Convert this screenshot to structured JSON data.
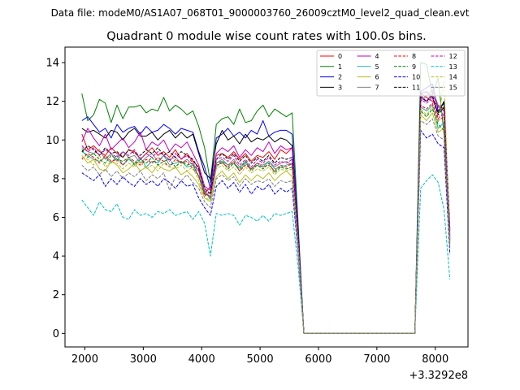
{
  "chart_data": {
    "type": "line",
    "suptitle": "Data file: modeM0/AS1A07_068T01_9000003760_26009cztM0_level2_quad_clean.evt",
    "title": "Quadrant 0 module wise count rates with 100.0s bins.",
    "xlabel": "",
    "ylabel": "",
    "x_offset_label": "+3.3292e8",
    "xlim": [
      1660,
      8560
    ],
    "ylim": [
      -0.7,
      14.8
    ],
    "x_ticks": [
      2000,
      3000,
      4000,
      5000,
      6000,
      7000,
      8000
    ],
    "y_ticks": [
      0,
      2,
      4,
      6,
      8,
      10,
      12,
      14
    ],
    "x": [
      1950,
      2050,
      2150,
      2250,
      2350,
      2450,
      2550,
      2650,
      2750,
      2850,
      2950,
      3050,
      3150,
      3250,
      3350,
      3450,
      3550,
      3650,
      3750,
      3850,
      3950,
      4050,
      4150,
      4250,
      4350,
      4450,
      4550,
      4650,
      4750,
      4850,
      4950,
      5050,
      5150,
      5250,
      5350,
      5450,
      5550,
      5650,
      5750,
      5850,
      5950,
      6050,
      6150,
      6250,
      6350,
      6450,
      6550,
      6650,
      6750,
      6850,
      6950,
      7050,
      7150,
      7250,
      7350,
      7450,
      7550,
      7650,
      7750,
      7850,
      7950,
      8050,
      8150,
      8250
    ],
    "legend_position": "top-right",
    "series": [
      {
        "name": "0",
        "color": "#ff0000",
        "dash": "solid",
        "values": [
          10.3,
          9.5,
          9.7,
          9.4,
          9.2,
          9.6,
          9.3,
          9.1,
          9.5,
          9.4,
          9.0,
          9.3,
          9.6,
          9.2,
          9.4,
          9.1,
          9.5,
          9.0,
          9.3,
          8.9,
          8.6,
          7.2,
          7.6,
          9.2,
          9.3,
          9.1,
          9.4,
          9.0,
          9.3,
          8.9,
          9.2,
          9.1,
          9.4,
          9.0,
          9.5,
          9.3,
          9.6,
          5.0,
          0.0,
          0.0,
          0.0,
          0.0,
          0.0,
          0.0,
          0.0,
          0.0,
          0.0,
          0.0,
          0.0,
          0.0,
          0.0,
          0.0,
          0.0,
          0.0,
          0.0,
          0.0,
          0.0,
          0.0,
          12.4,
          12.2,
          12.0,
          11.8,
          11.6,
          4.9
        ]
      },
      {
        "name": "1",
        "color": "#008000",
        "dash": "solid",
        "values": [
          12.4,
          11.0,
          11.3,
          12.1,
          11.9,
          10.9,
          11.8,
          11.1,
          11.7,
          11.7,
          11.8,
          11.4,
          11.6,
          11.5,
          12.2,
          11.5,
          11.8,
          11.6,
          11.3,
          11.5,
          10.7,
          9.6,
          7.8,
          10.8,
          11.1,
          11.2,
          10.8,
          11.6,
          10.9,
          11.0,
          11.5,
          11.8,
          11.2,
          11.6,
          11.4,
          11.2,
          11.4,
          5.8,
          0.0,
          0.0,
          0.0,
          0.0,
          0.0,
          0.0,
          0.0,
          0.0,
          0.0,
          0.0,
          0.0,
          0.0,
          0.0,
          0.0,
          0.0,
          0.0,
          0.0,
          0.0,
          0.0,
          0.0,
          14.0,
          13.9,
          12.4,
          13.2,
          10.3,
          5.2
        ]
      },
      {
        "name": "2",
        "color": "#0000ff",
        "dash": "solid",
        "values": [
          11.0,
          11.2,
          10.8,
          10.4,
          10.6,
          10.1,
          10.8,
          10.4,
          10.6,
          10.7,
          10.3,
          10.7,
          10.4,
          10.5,
          10.8,
          10.6,
          10.3,
          10.6,
          10.5,
          10.4,
          9.4,
          8.6,
          7.5,
          10.1,
          10.3,
          10.6,
          10.2,
          10.4,
          10.1,
          10.5,
          10.3,
          11.0,
          10.2,
          10.4,
          10.5,
          10.5,
          10.3,
          5.5,
          0.0,
          0.0,
          0.0,
          0.0,
          0.0,
          0.0,
          0.0,
          0.0,
          0.0,
          0.0,
          0.0,
          0.0,
          0.0,
          0.0,
          0.0,
          0.0,
          0.0,
          0.0,
          0.0,
          0.0,
          12.5,
          12.7,
          12.9,
          11.5,
          11.9,
          5.4
        ]
      },
      {
        "name": "3",
        "color": "#000000",
        "dash": "solid",
        "values": [
          10.6,
          10.4,
          10.5,
          10.3,
          10.1,
          10.5,
          10.4,
          10.0,
          10.4,
          10.6,
          10.2,
          10.2,
          10.4,
          10.0,
          10.3,
          10.5,
          10.1,
          10.4,
          10.1,
          10.3,
          9.3,
          8.3,
          8.0,
          9.8,
          10.5,
          10.0,
          10.2,
          9.8,
          10.3,
          9.9,
          10.1,
          10.0,
          10.2,
          9.9,
          10.1,
          10.0,
          9.7,
          5.2,
          0.0,
          0.0,
          0.0,
          0.0,
          0.0,
          0.0,
          0.0,
          0.0,
          0.0,
          0.0,
          0.0,
          0.0,
          0.0,
          0.0,
          0.0,
          0.0,
          0.0,
          0.0,
          0.0,
          0.0,
          12.4,
          12.5,
          12.2,
          11.4,
          12.0,
          5.3
        ]
      },
      {
        "name": "4",
        "color": "#bf00bf",
        "dash": "solid",
        "values": [
          9.9,
          10.6,
          10.1,
          9.7,
          10.3,
          9.5,
          9.8,
          10.1,
          9.6,
          9.9,
          10.4,
          9.5,
          9.9,
          9.7,
          10.0,
          9.4,
          9.8,
          9.6,
          9.9,
          9.3,
          8.7,
          7.6,
          7.4,
          9.3,
          9.6,
          9.4,
          9.7,
          9.1,
          9.5,
          9.2,
          9.6,
          9.4,
          9.9,
          9.3,
          9.7,
          9.5,
          9.6,
          5.1,
          0.0,
          0.0,
          0.0,
          0.0,
          0.0,
          0.0,
          0.0,
          0.0,
          0.0,
          0.0,
          0.0,
          0.0,
          0.0,
          0.0,
          0.0,
          0.0,
          0.0,
          0.0,
          0.0,
          0.0,
          12.3,
          12.0,
          12.4,
          11.7,
          11.5,
          5.1
        ]
      },
      {
        "name": "5",
        "color": "#20b2aa",
        "dash": "solid",
        "values": [
          9.4,
          9.2,
          9.0,
          8.9,
          9.1,
          8.8,
          9.2,
          8.7,
          9.0,
          8.8,
          9.1,
          8.6,
          8.9,
          8.8,
          9.2,
          8.7,
          8.8,
          8.9,
          8.6,
          8.7,
          8.1,
          7.4,
          6.9,
          8.6,
          8.9,
          8.7,
          8.8,
          8.4,
          8.8,
          8.5,
          8.7,
          8.6,
          8.9,
          8.5,
          8.6,
          8.7,
          8.8,
          4.8,
          0.0,
          0.0,
          0.0,
          0.0,
          0.0,
          0.0,
          0.0,
          0.0,
          0.0,
          0.0,
          0.0,
          0.0,
          0.0,
          0.0,
          0.0,
          0.0,
          0.0,
          0.0,
          0.0,
          0.0,
          11.7,
          11.5,
          11.8,
          10.6,
          10.9,
          4.6
        ]
      },
      {
        "name": "6",
        "color": "#bcbd22",
        "dash": "solid",
        "values": [
          9.2,
          8.8,
          9.0,
          8.5,
          8.4,
          8.9,
          8.7,
          8.3,
          8.5,
          8.8,
          8.4,
          8.6,
          8.3,
          8.7,
          8.5,
          8.4,
          8.6,
          8.2,
          8.4,
          8.1,
          7.7,
          7.0,
          6.8,
          8.1,
          8.4,
          8.0,
          8.3,
          7.8,
          8.2,
          7.9,
          8.2,
          8.0,
          8.3,
          7.9,
          8.2,
          8.4,
          8.1,
          4.5,
          0.0,
          0.0,
          0.0,
          0.0,
          0.0,
          0.0,
          0.0,
          0.0,
          0.0,
          0.0,
          0.0,
          0.0,
          0.0,
          0.0,
          0.0,
          0.0,
          0.0,
          0.0,
          0.0,
          0.0,
          11.3,
          11.0,
          11.4,
          10.4,
          10.6,
          4.5
        ]
      },
      {
        "name": "7",
        "color": "#808080",
        "dash": "solid",
        "values": [
          9.6,
          9.4,
          9.3,
          9.5,
          9.0,
          9.3,
          8.9,
          9.4,
          9.1,
          9.2,
          8.8,
          9.1,
          9.3,
          8.9,
          9.2,
          9.0,
          9.1,
          8.8,
          9.0,
          8.7,
          8.4,
          7.3,
          7.0,
          8.8,
          9.0,
          8.7,
          9.0,
          8.6,
          8.9,
          8.5,
          8.8,
          8.7,
          8.9,
          8.6,
          8.8,
          8.9,
          8.7,
          4.7,
          0.0,
          0.0,
          0.0,
          0.0,
          0.0,
          0.0,
          0.0,
          0.0,
          0.0,
          0.0,
          0.0,
          0.0,
          0.0,
          0.0,
          0.0,
          0.0,
          0.0,
          0.0,
          0.0,
          0.0,
          12.0,
          12.3,
          12.6,
          11.8,
          11.2,
          4.8
        ]
      },
      {
        "name": "8",
        "color": "#ff0000",
        "dash": "dashed",
        "values": [
          9.0,
          9.3,
          9.1,
          8.8,
          9.2,
          8.9,
          9.0,
          8.7,
          9.1,
          8.9,
          8.7,
          9.0,
          8.8,
          9.1,
          8.9,
          8.6,
          9.0,
          8.8,
          8.9,
          8.5,
          8.2,
          7.1,
          7.3,
          8.7,
          8.8,
          8.6,
          8.9,
          8.4,
          8.7,
          8.5,
          8.8,
          8.6,
          8.7,
          8.4,
          8.7,
          8.6,
          8.8,
          4.7,
          0.0,
          0.0,
          0.0,
          0.0,
          0.0,
          0.0,
          0.0,
          0.0,
          0.0,
          0.0,
          0.0,
          0.0,
          0.0,
          0.0,
          0.0,
          0.0,
          0.0,
          0.0,
          0.0,
          0.0,
          11.8,
          11.6,
          11.9,
          11.0,
          11.2,
          4.8
        ]
      },
      {
        "name": "9",
        "color": "#008000",
        "dash": "dashed",
        "values": [
          9.5,
          9.1,
          9.3,
          9.0,
          8.8,
          9.2,
          9.0,
          8.9,
          9.1,
          8.7,
          9.0,
          8.8,
          9.1,
          8.7,
          8.9,
          9.0,
          8.6,
          8.9,
          8.7,
          8.8,
          8.1,
          7.2,
          7.1,
          8.8,
          8.9,
          8.5,
          8.8,
          8.5,
          8.9,
          8.4,
          8.7,
          8.5,
          8.8,
          8.3,
          8.6,
          8.5,
          8.6,
          4.6,
          0.0,
          0.0,
          0.0,
          0.0,
          0.0,
          0.0,
          0.0,
          0.0,
          0.0,
          0.0,
          0.0,
          0.0,
          0.0,
          0.0,
          0.0,
          0.0,
          0.0,
          0.0,
          0.0,
          0.0,
          11.5,
          11.2,
          11.6,
          10.8,
          10.5,
          4.7
        ]
      },
      {
        "name": "10",
        "color": "#0000ff",
        "dash": "dashed",
        "values": [
          8.3,
          8.1,
          7.9,
          8.2,
          7.6,
          8.0,
          7.7,
          8.1,
          7.8,
          7.6,
          8.0,
          7.7,
          7.9,
          7.6,
          8.0,
          7.8,
          7.5,
          7.9,
          7.6,
          7.7,
          7.0,
          6.5,
          6.1,
          7.6,
          7.9,
          7.5,
          7.8,
          7.3,
          7.7,
          7.2,
          7.6,
          7.4,
          7.7,
          7.2,
          7.5,
          7.3,
          7.5,
          4.2,
          0.0,
          0.0,
          0.0,
          0.0,
          0.0,
          0.0,
          0.0,
          0.0,
          0.0,
          0.0,
          0.0,
          0.0,
          0.0,
          0.0,
          0.0,
          0.0,
          0.0,
          0.0,
          0.0,
          0.0,
          10.5,
          10.1,
          10.3,
          9.8,
          9.6,
          4.1
        ]
      },
      {
        "name": "11",
        "color": "#000000",
        "dash": "dashed",
        "values": [
          9.4,
          9.7,
          9.5,
          9.2,
          9.6,
          9.3,
          9.4,
          9.1,
          9.5,
          9.3,
          9.2,
          9.5,
          9.3,
          9.6,
          9.2,
          9.4,
          9.1,
          9.4,
          9.2,
          9.0,
          8.5,
          7.5,
          7.2,
          9.0,
          9.3,
          9.0,
          9.3,
          8.9,
          9.2,
          8.8,
          9.1,
          8.9,
          9.2,
          8.8,
          9.1,
          9.0,
          9.1,
          4.9,
          0.0,
          0.0,
          0.0,
          0.0,
          0.0,
          0.0,
          0.0,
          0.0,
          0.0,
          0.0,
          0.0,
          0.0,
          0.0,
          0.0,
          0.0,
          0.0,
          0.0,
          0.0,
          0.0,
          0.0,
          12.2,
          12.0,
          12.3,
          11.3,
          11.7,
          5.0
        ]
      },
      {
        "name": "12",
        "color": "#bf00bf",
        "dash": "dashed",
        "values": [
          9.7,
          9.4,
          9.6,
          9.2,
          9.5,
          9.3,
          9.1,
          9.4,
          9.2,
          9.5,
          9.0,
          9.3,
          9.1,
          9.4,
          9.2,
          8.9,
          9.3,
          9.0,
          9.2,
          8.8,
          8.4,
          7.4,
          7.0,
          9.0,
          9.1,
          8.9,
          9.2,
          8.7,
          9.0,
          8.6,
          9.0,
          8.8,
          9.1,
          8.7,
          8.9,
          8.8,
          9.0,
          4.8,
          0.0,
          0.0,
          0.0,
          0.0,
          0.0,
          0.0,
          0.0,
          0.0,
          0.0,
          0.0,
          0.0,
          0.0,
          0.0,
          0.0,
          0.0,
          0.0,
          0.0,
          0.0,
          0.0,
          0.0,
          12.1,
          11.9,
          12.2,
          11.1,
          11.4,
          4.9
        ]
      },
      {
        "name": "13",
        "color": "#00bfbf",
        "dash": "dashed",
        "values": [
          6.9,
          6.5,
          6.1,
          6.8,
          6.4,
          6.3,
          6.7,
          6.0,
          5.9,
          6.4,
          6.1,
          6.2,
          6.0,
          6.3,
          6.2,
          6.4,
          6.1,
          6.2,
          6.3,
          5.9,
          6.3,
          5.7,
          4.0,
          6.2,
          6.1,
          6.2,
          6.1,
          5.6,
          6.1,
          6.0,
          5.8,
          6.1,
          5.8,
          6.2,
          6.1,
          6.2,
          6.3,
          3.5,
          0.0,
          0.0,
          0.0,
          0.0,
          0.0,
          0.0,
          0.0,
          0.0,
          0.0,
          0.0,
          0.0,
          0.0,
          0.0,
          0.0,
          0.0,
          0.0,
          0.0,
          0.0,
          0.0,
          0.0,
          7.5,
          7.9,
          8.2,
          7.8,
          6.4,
          2.8
        ]
      },
      {
        "name": "14",
        "color": "#bcbd22",
        "dash": "dashed",
        "values": [
          9.1,
          9.0,
          8.7,
          9.2,
          8.6,
          8.9,
          8.8,
          8.5,
          8.8,
          8.6,
          8.9,
          8.5,
          8.7,
          8.4,
          8.8,
          8.6,
          8.5,
          8.7,
          8.4,
          8.6,
          7.9,
          7.0,
          6.9,
          8.5,
          8.7,
          8.4,
          8.6,
          8.2,
          8.6,
          8.3,
          8.5,
          8.4,
          8.6,
          8.2,
          8.5,
          8.4,
          8.5,
          4.6,
          0.0,
          0.0,
          0.0,
          0.0,
          0.0,
          0.0,
          0.0,
          0.0,
          0.0,
          0.0,
          0.0,
          0.0,
          0.0,
          0.0,
          0.0,
          0.0,
          0.0,
          0.0,
          0.0,
          0.0,
          11.6,
          11.3,
          11.7,
          10.9,
          13.1,
          4.7
        ]
      },
      {
        "name": "15",
        "color": "#808080",
        "dash": "dashed",
        "values": [
          8.7,
          8.4,
          8.6,
          8.2,
          8.5,
          8.1,
          8.4,
          8.0,
          8.3,
          8.1,
          8.4,
          7.9,
          8.2,
          8.0,
          8.3,
          7.4,
          8.1,
          7.9,
          8.2,
          7.8,
          7.5,
          6.8,
          6.5,
          8.0,
          8.2,
          7.9,
          8.1,
          7.6,
          8.0,
          7.7,
          7.9,
          7.8,
          8.0,
          7.6,
          7.9,
          7.8,
          7.9,
          4.3,
          0.0,
          0.0,
          0.0,
          0.0,
          0.0,
          0.0,
          0.0,
          0.0,
          0.0,
          0.0,
          0.0,
          0.0,
          0.0,
          0.0,
          0.0,
          0.0,
          0.0,
          0.0,
          0.0,
          0.0,
          11.0,
          10.8,
          11.1,
          10.2,
          10.0,
          4.4
        ]
      }
    ]
  }
}
